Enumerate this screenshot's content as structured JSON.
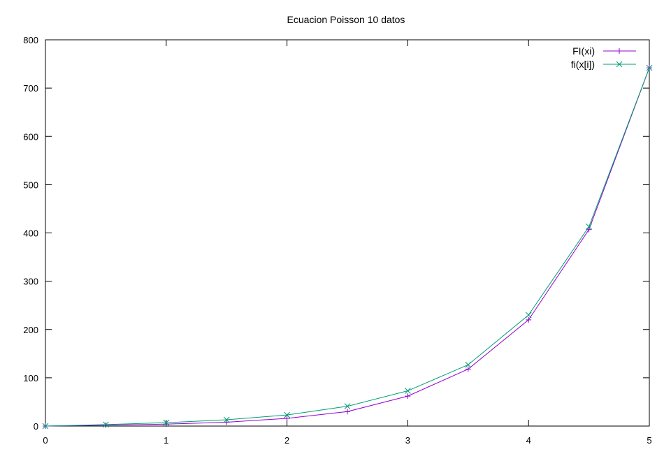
{
  "chart_data": {
    "type": "line",
    "title": "Ecuacion Poisson 10 datos",
    "xlabel": "",
    "ylabel": "",
    "xlim": [
      0,
      5
    ],
    "ylim": [
      0,
      800
    ],
    "x_ticks": [
      "0",
      "1",
      "2",
      "3",
      "4",
      "5"
    ],
    "y_ticks": [
      "0",
      "100",
      "200",
      "300",
      "400",
      "500",
      "600",
      "700",
      "800"
    ],
    "grid": false,
    "legend_position": "top-right",
    "x": [
      0,
      0.5,
      1,
      1.5,
      2,
      2.5,
      3,
      3.5,
      4,
      4.5,
      5
    ],
    "series": [
      {
        "name": "FI(xi)",
        "marker": "plus",
        "color": "#9400d3",
        "values": [
          0,
          2,
          4,
          8,
          16,
          30,
          62,
          118,
          220,
          407,
          742
        ]
      },
      {
        "name": "fi(x[i])",
        "marker": "cross",
        "color": "#009e73",
        "values": [
          0,
          3,
          7,
          13,
          23,
          41,
          73,
          127,
          230,
          413,
          742
        ]
      }
    ]
  }
}
